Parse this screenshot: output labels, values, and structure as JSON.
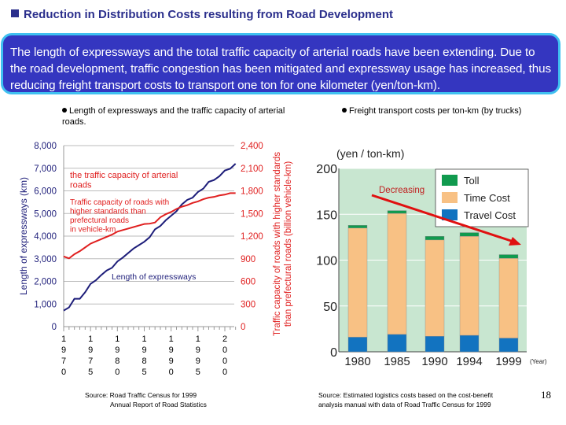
{
  "title": "Reduction in Distribution Costs resulting from Road Development",
  "summary": "The length of expressways and the total traffic capacity of arterial roads have been extending. Due to the road development, traffic congestion has been mitigated and expressway usage has increased, thus reducing freight transport costs to transport one ton for one kilometer (yen/ton-km).",
  "colors": {
    "title": "#2b2f8c",
    "summary_bg": "#3436c0",
    "summary_border": "#3fc0f0"
  },
  "left_caption": "Length of expressways and the traffic capacity of arterial roads.",
  "right_caption": "Freight transport costs per ton-km  (by trucks)",
  "left_source": [
    "Source: Road Traffic Census for 1999",
    "Annual Report of Road Statistics"
  ],
  "right_source": [
    "Source: Estimated logistics costs based on the cost-benefit",
    "analysis manual with data of Road Traffic Census for 1999"
  ],
  "page_number": "18",
  "chart_data": [
    {
      "type": "line",
      "ylabel": "Length of expressways (km)",
      "y2label": "Traffic capacity of roads with higher standards than prefectural roads (billion vehicle-km)",
      "ylim": [
        0,
        8000
      ],
      "y2lim": [
        0,
        2400
      ],
      "yticks": [
        "0",
        "1,000",
        "2,000",
        "3,000",
        "4,000",
        "5,000",
        "6,000",
        "7,000",
        "8,000"
      ],
      "y2ticks": [
        "0",
        "300",
        "600",
        "900",
        "1,200",
        "1,500",
        "1,800",
        "2,100",
        "2,400"
      ],
      "xticks": [
        "1970",
        "1975",
        "1980",
        "1985",
        "1990",
        "1995",
        "2000"
      ],
      "xlim": [
        1970,
        2002
      ],
      "grid": true,
      "annotations": [
        "the traffic capacity of arterial roads",
        "Traffic capacity of roads with higher standards than prefectural roads in vehicle-km",
        "Length of expressways"
      ],
      "series": [
        {
          "name": "Length of expressways",
          "axis": "left",
          "color": "#1e1e7a",
          "x": [
            1970,
            1971,
            1972,
            1973,
            1974,
            1975,
            1976,
            1977,
            1978,
            1979,
            1980,
            1981,
            1982,
            1983,
            1984,
            1985,
            1986,
            1987,
            1988,
            1989,
            1990,
            1991,
            1992,
            1993,
            1994,
            1995,
            1996,
            1997,
            1998,
            1999,
            2000,
            2001,
            2002
          ],
          "y": [
            710,
            850,
            1230,
            1230,
            1520,
            1890,
            2050,
            2280,
            2480,
            2600,
            2880,
            3050,
            3250,
            3450,
            3600,
            3750,
            3950,
            4300,
            4450,
            4700,
            4900,
            5100,
            5400,
            5600,
            5700,
            5950,
            6100,
            6400,
            6480,
            6650,
            6900,
            6980,
            7200
          ]
        },
        {
          "name": "the traffic capacity of arterial roads",
          "axis": "right",
          "color": "#e02020",
          "x": [
            1970,
            1971,
            1972,
            1973,
            1974,
            1975,
            1976,
            1977,
            1978,
            1979,
            1980,
            1981,
            1982,
            1983,
            1984,
            1985,
            1986,
            1987,
            1988,
            1989,
            1990,
            1991,
            1992,
            1993,
            1994,
            1995,
            1996,
            1997,
            1998,
            1999,
            2000,
            2001,
            2002
          ],
          "y": [
            930,
            905,
            960,
            1000,
            1050,
            1100,
            1130,
            1160,
            1190,
            1220,
            1260,
            1280,
            1300,
            1320,
            1340,
            1360,
            1365,
            1380,
            1450,
            1490,
            1520,
            1560,
            1590,
            1610,
            1640,
            1660,
            1690,
            1710,
            1720,
            1740,
            1750,
            1770,
            1770
          ]
        }
      ]
    },
    {
      "type": "bar",
      "stacked": true,
      "ylabel": "(yen / ton-km)",
      "xlabel": "(Year)",
      "ylim": [
        0,
        200
      ],
      "yticks": [
        "0",
        "50",
        "100",
        "150",
        "200"
      ],
      "categories": [
        "1980",
        "1985",
        "1990",
        "1994",
        "1999"
      ],
      "legend": "top-right",
      "background": "#c8e6d0",
      "annotation": "Decreasing",
      "series": [
        {
          "name": "Travel Cost",
          "color": "#1273c0",
          "values": [
            16,
            19,
            17,
            18,
            15
          ]
        },
        {
          "name": "Time Cost",
          "color": "#f8c184",
          "values": [
            119,
            132,
            105,
            108,
            87
          ]
        },
        {
          "name": "Toll",
          "color": "#109a4e",
          "values": [
            3,
            3,
            4,
            4,
            4
          ]
        }
      ]
    }
  ]
}
